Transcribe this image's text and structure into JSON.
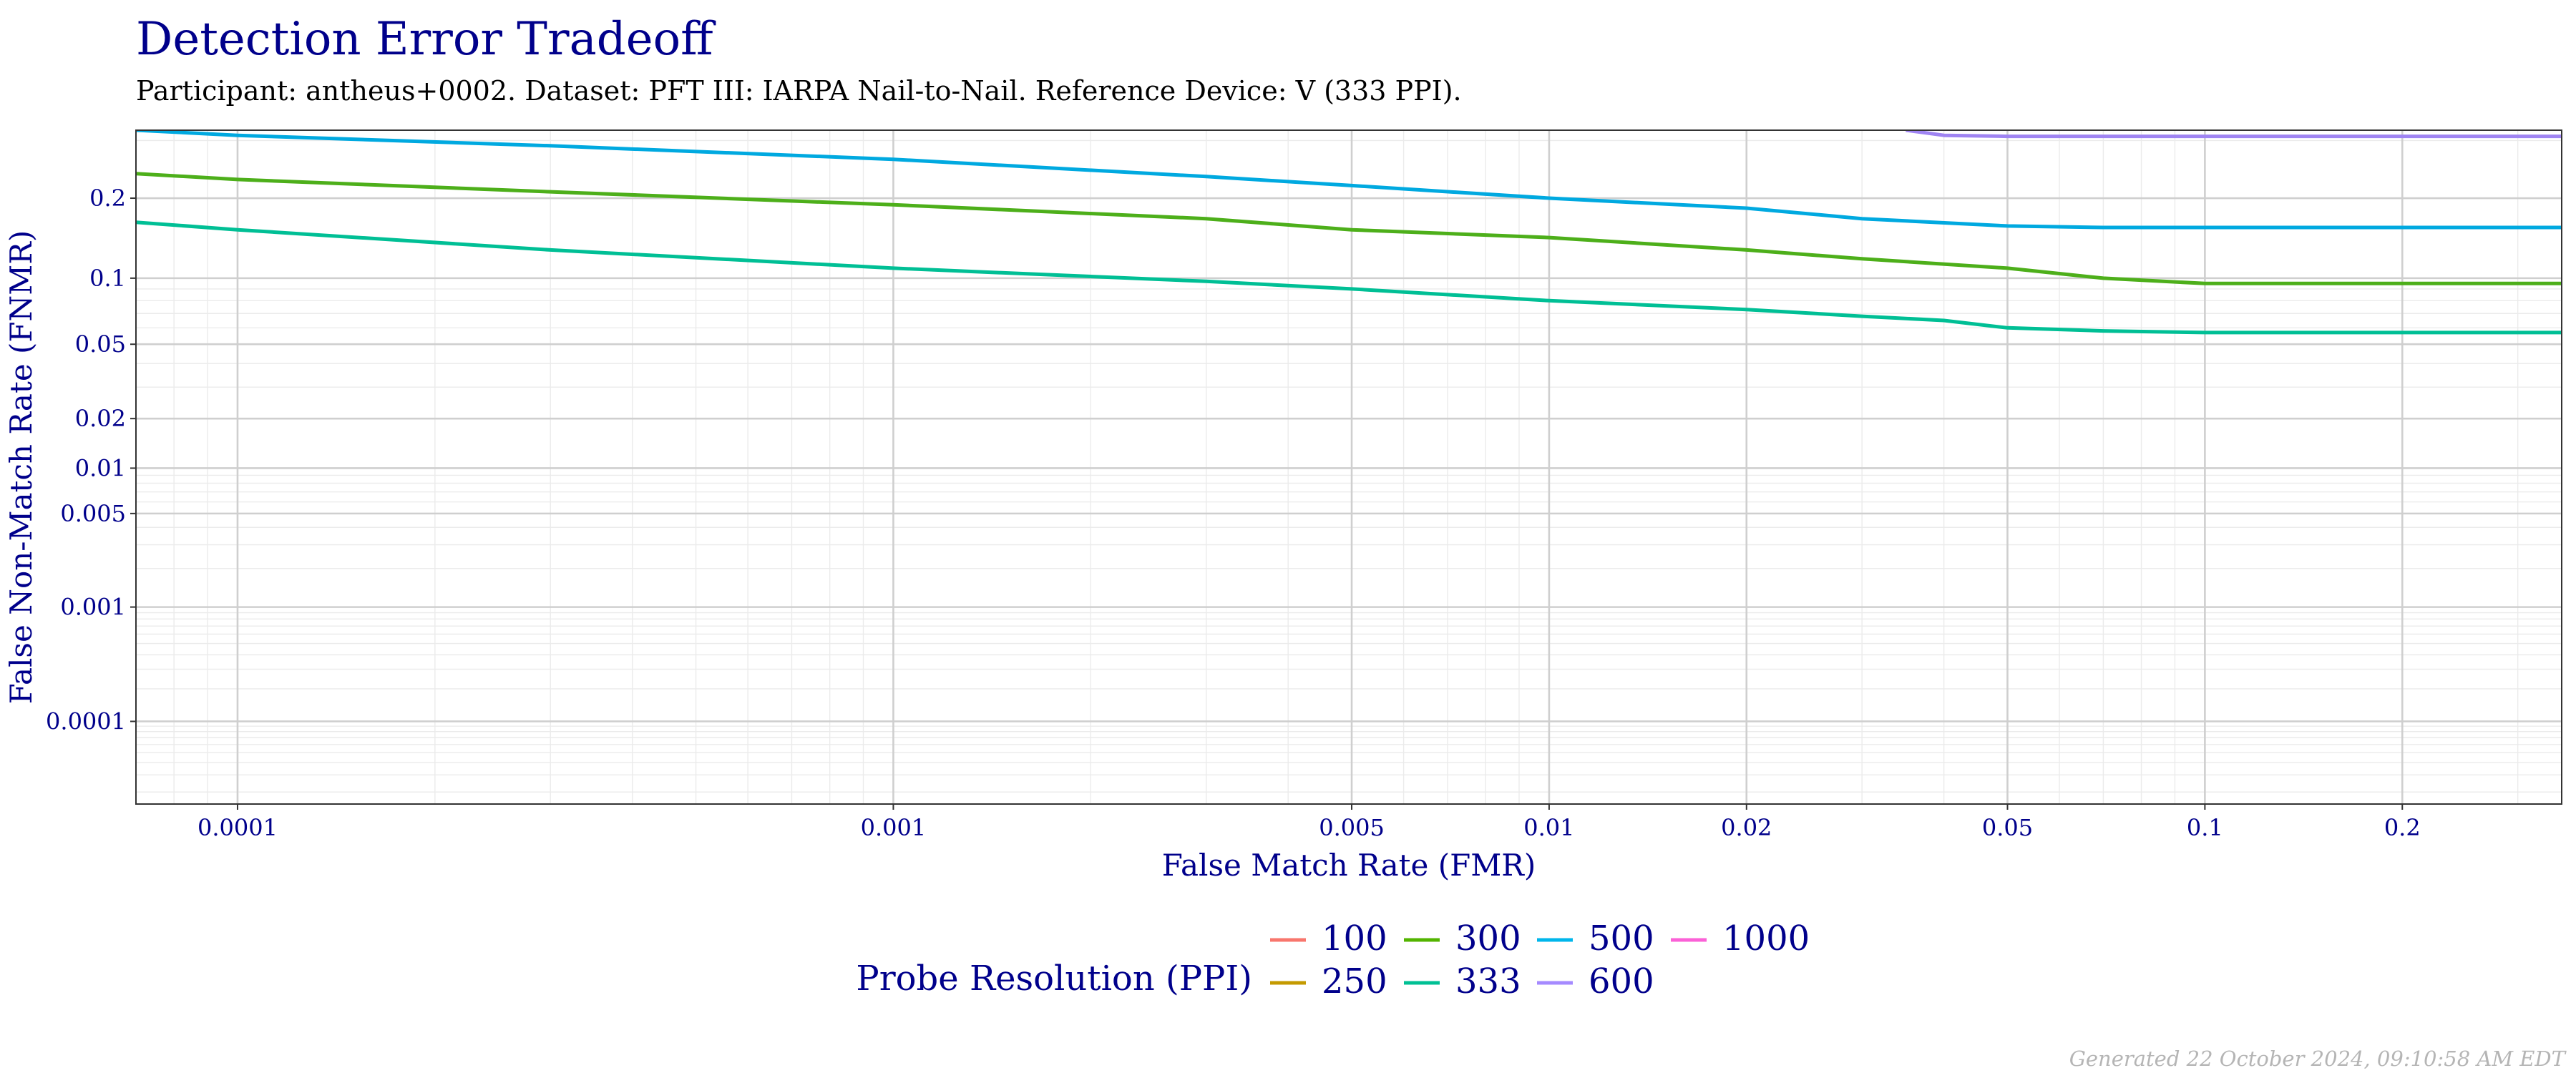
{
  "chart_data": {
    "type": "line",
    "title": "Detection Error Tradeoff",
    "subtitle": "Participant: antheus+0002. Dataset: PFT III: IARPA Nail-to-Nail. Reference Device: V (333 PPI).",
    "xlabel": "False Match Rate (FMR)",
    "ylabel": "False Non-Match Rate (FNMR)",
    "x_scale": "log",
    "y_scale": "probit",
    "xlim": [
      7e-05,
      0.35
    ],
    "ylim": [
      1.5e-05,
      0.32
    ],
    "grid": true,
    "x_ticks": [
      {
        "value": 0.0001,
        "label": "0.0001"
      },
      {
        "value": 0.001,
        "label": "0.001"
      },
      {
        "value": 0.005,
        "label": "0.005"
      },
      {
        "value": 0.01,
        "label": "0.01"
      },
      {
        "value": 0.02,
        "label": "0.02"
      },
      {
        "value": 0.05,
        "label": "0.05"
      },
      {
        "value": 0.1,
        "label": "0.1"
      },
      {
        "value": 0.2,
        "label": "0.2"
      }
    ],
    "y_ticks": [
      {
        "value": 0.2,
        "label": "0.2"
      },
      {
        "value": 0.1,
        "label": "0.1"
      },
      {
        "value": 0.05,
        "label": "0.05"
      },
      {
        "value": 0.02,
        "label": "0.02"
      },
      {
        "value": 0.01,
        "label": "0.01"
      },
      {
        "value": 0.005,
        "label": "0.005"
      },
      {
        "value": 0.001,
        "label": "0.001"
      },
      {
        "value": 0.0001,
        "label": "0.0001"
      }
    ],
    "series": [
      {
        "name": "300",
        "color": "#4DAF1A",
        "x": [
          7e-05,
          0.0001,
          0.0003,
          0.001,
          0.003,
          0.005,
          0.01,
          0.02,
          0.03,
          0.05,
          0.07,
          0.1,
          0.35
        ],
        "y": [
          0.24,
          0.23,
          0.21,
          0.19,
          0.17,
          0.155,
          0.145,
          0.13,
          0.12,
          0.11,
          0.1,
          0.095,
          0.095
        ]
      },
      {
        "name": "333",
        "color": "#00BF95",
        "x": [
          7e-05,
          0.0001,
          0.0003,
          0.001,
          0.003,
          0.005,
          0.01,
          0.02,
          0.03,
          0.04,
          0.05,
          0.07,
          0.1,
          0.35
        ],
        "y": [
          0.165,
          0.155,
          0.13,
          0.11,
          0.097,
          0.09,
          0.08,
          0.073,
          0.068,
          0.065,
          0.06,
          0.058,
          0.057,
          0.057
        ]
      },
      {
        "name": "500",
        "color": "#00A9E0",
        "x": [
          7e-05,
          0.0001,
          0.0003,
          0.001,
          0.003,
          0.005,
          0.01,
          0.02,
          0.03,
          0.05,
          0.07,
          0.1,
          0.35
        ],
        "y": [
          0.32,
          0.31,
          0.29,
          0.265,
          0.235,
          0.22,
          0.2,
          0.185,
          0.17,
          0.16,
          0.158,
          0.158,
          0.158
        ]
      },
      {
        "name": "600",
        "color": "#9F84F2",
        "x": [
          0.035,
          0.04,
          0.05,
          0.1,
          0.35
        ],
        "y": [
          0.32,
          0.31,
          0.308,
          0.308,
          0.308
        ]
      }
    ],
    "legend": {
      "title": "Probe Resolution (PPI)",
      "position": "bottom",
      "items": [
        {
          "label": "100",
          "color": "#F8766D"
        },
        {
          "label": "250",
          "color": "#C49A00"
        },
        {
          "label": "300",
          "color": "#53B400"
        },
        {
          "label": "333",
          "color": "#00C094"
        },
        {
          "label": "500",
          "color": "#00B6EB"
        },
        {
          "label": "600",
          "color": "#A58AFF"
        },
        {
          "label": "1000",
          "color": "#FB61D7"
        }
      ]
    },
    "footer": "Generated 22 October 2024, 09:10:58 AM EDT"
  }
}
